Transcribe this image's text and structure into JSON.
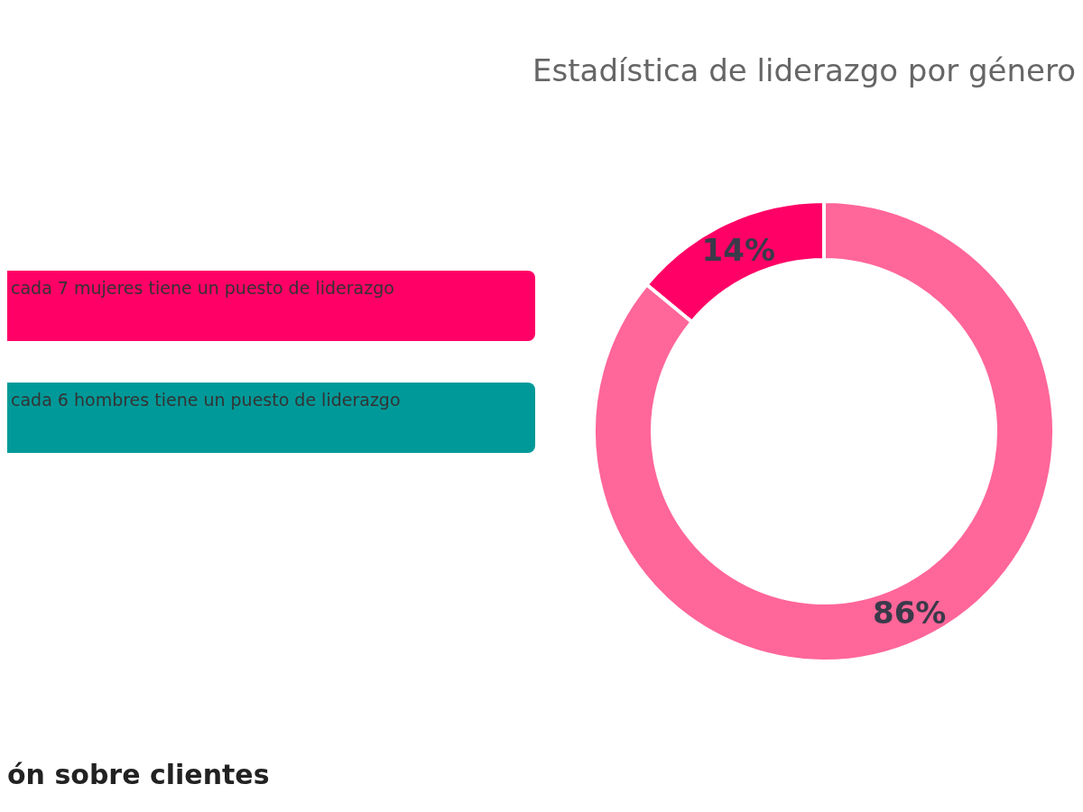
{
  "chart_data": {
    "type": "donut",
    "title": "Estadística de liderazgo por género",
    "categories": [
      null,
      null
    ],
    "values": [
      14,
      86
    ],
    "colors": [
      "#ff0066",
      "#ff6699"
    ],
    "value_labels": [
      "14%",
      "86%"
    ],
    "annotations": [
      "cada 7 mujeres tiene un puesto de liderazgo",
      "cada 6 hombres tiene un puesto de liderazgo",
      "ón sobre clientes"
    ],
    "legend": false
  }
}
